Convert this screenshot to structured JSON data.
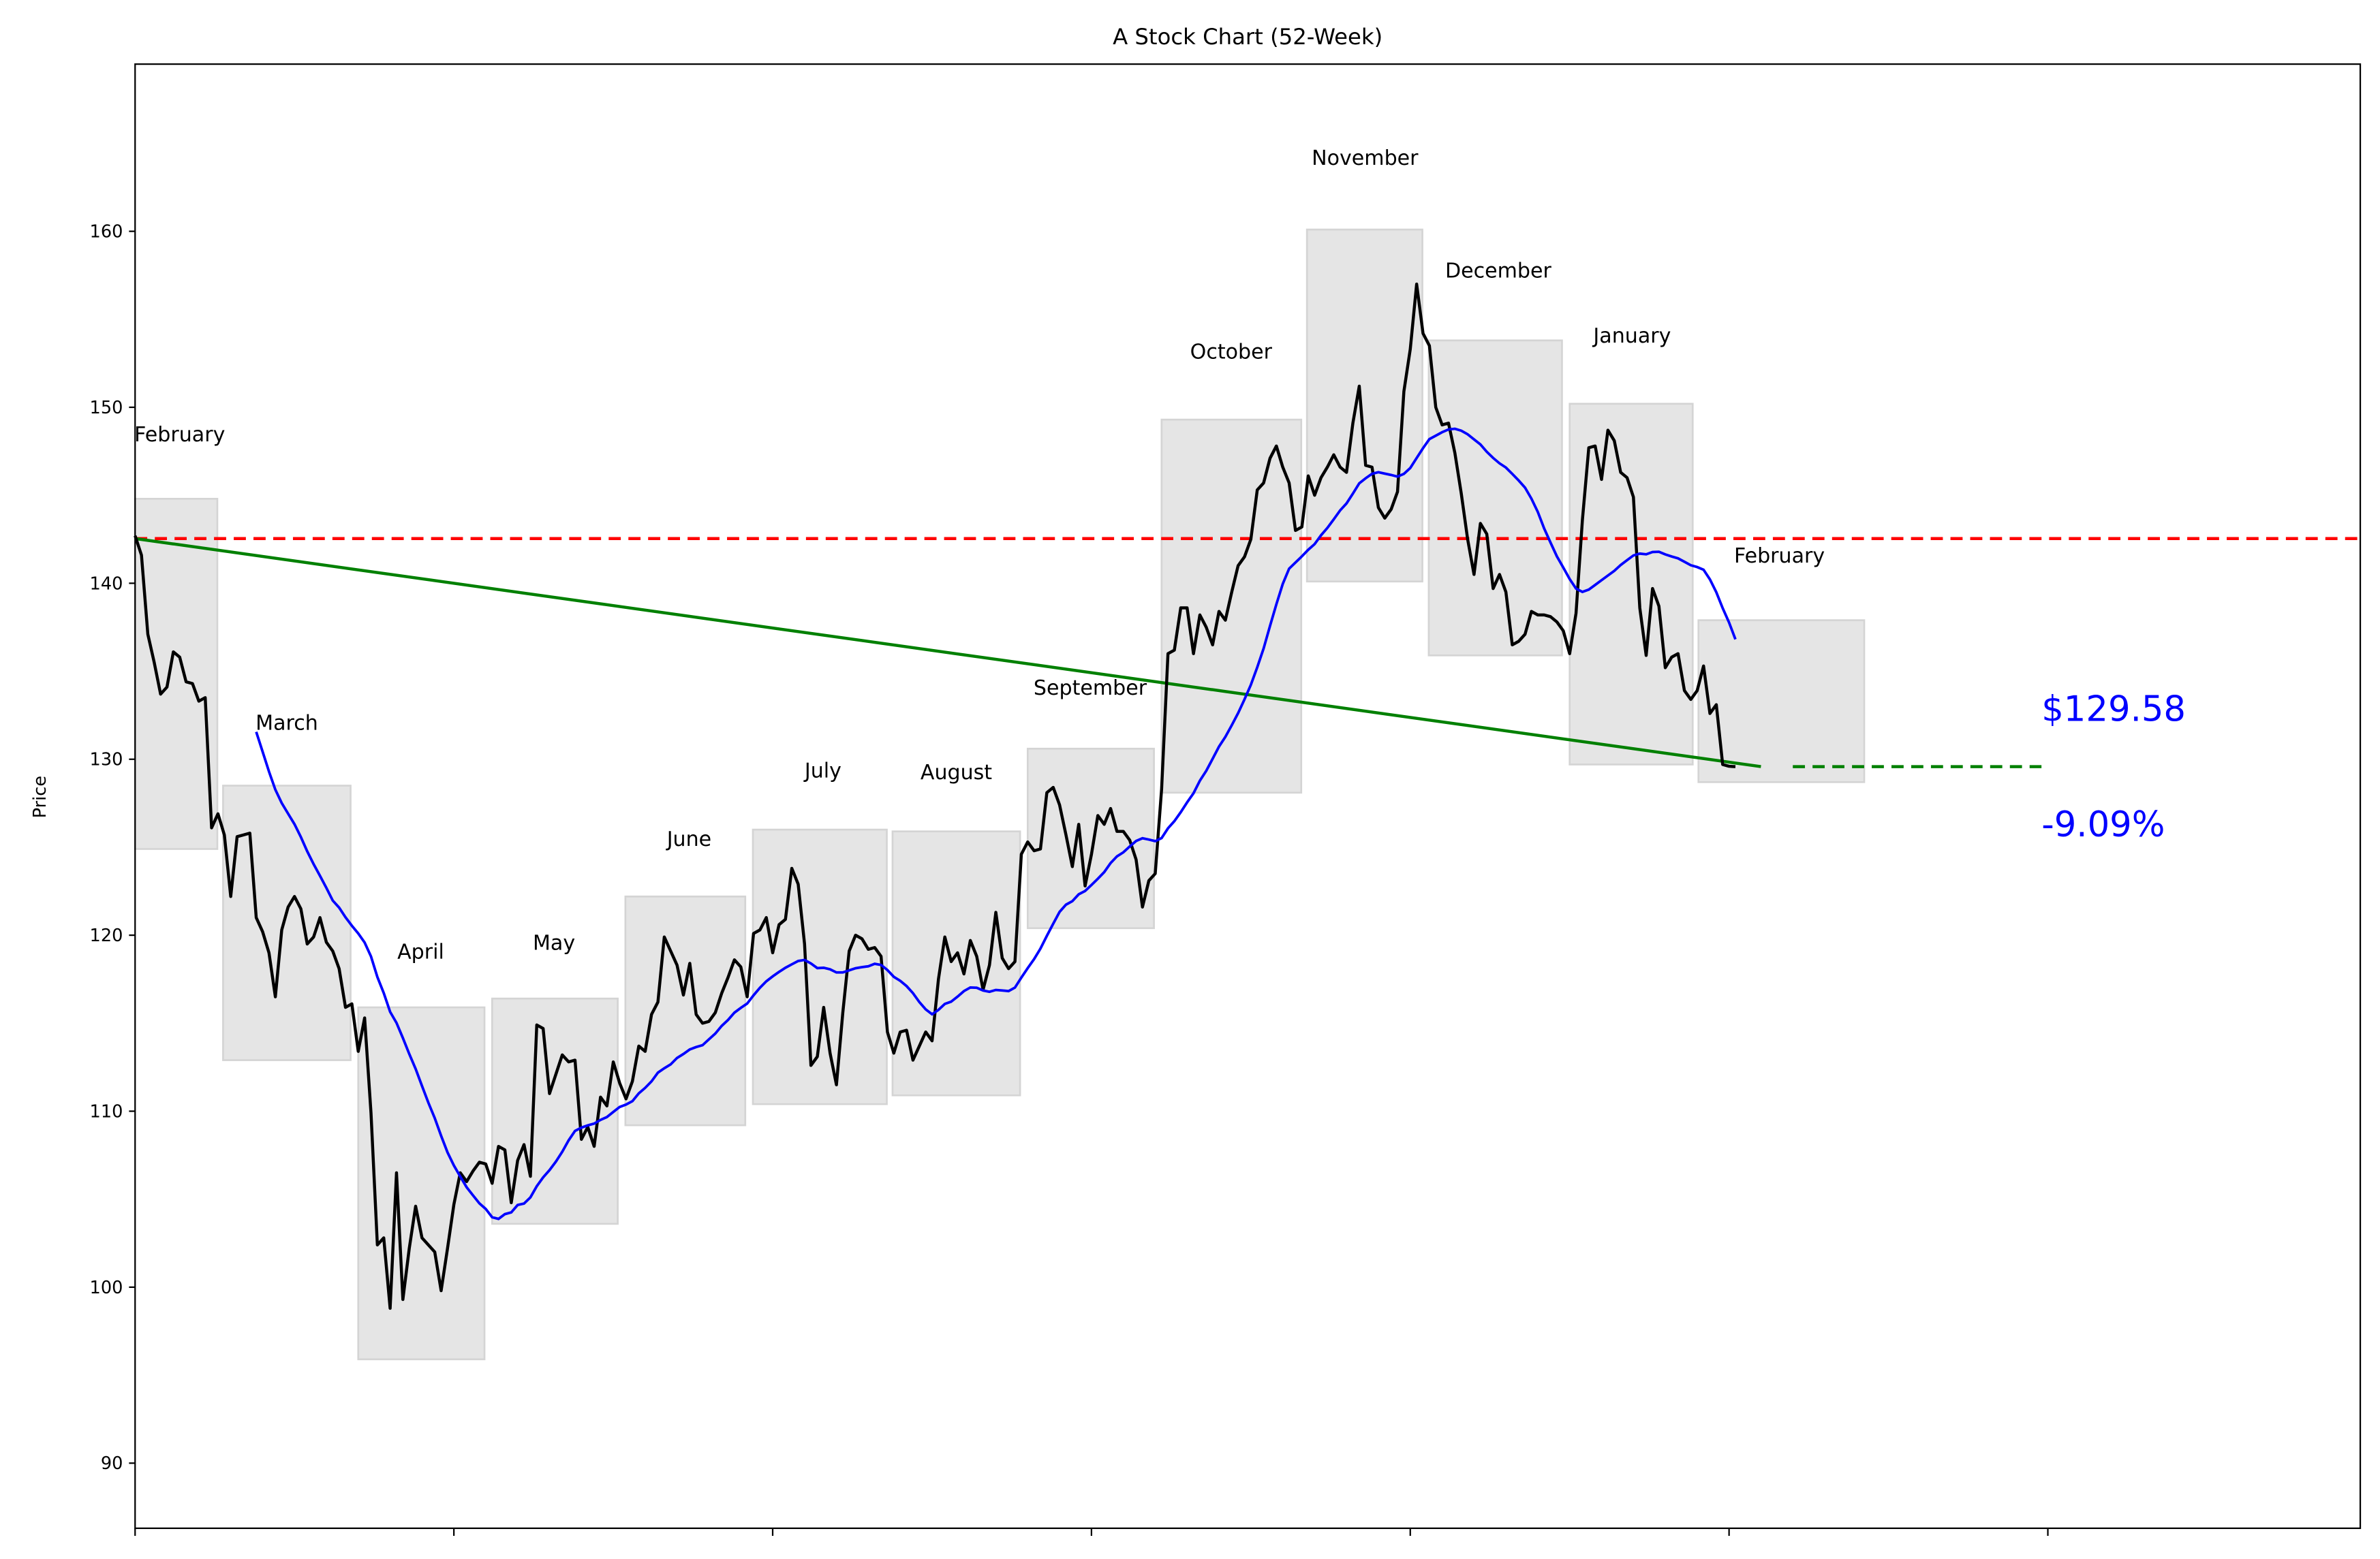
{
  "chart_data": {
    "type": "line",
    "title": "A Stock Chart (52-Week)",
    "xlabel": "",
    "ylabel": "Price",
    "xlim": [
      0,
      349
    ],
    "ylim": [
      86.3,
      169.5
    ],
    "xticks": [
      0,
      50,
      100,
      150,
      200,
      250,
      300
    ],
    "xtick_labels": [
      "",
      "",
      "",
      "",
      "",
      "",
      ""
    ],
    "yticks": [
      90,
      100,
      110,
      120,
      130,
      140,
      150,
      160
    ],
    "ytick_labels": [
      "90",
      "100",
      "110",
      "120",
      "130",
      "140",
      "150",
      "160"
    ],
    "grid": false,
    "colors": {
      "price": "#000000",
      "moving_average": "#0000ff",
      "reference_line": "#ff0000",
      "trend_line": "#008000",
      "month_box_fill": "#e5e5e5",
      "month_box_edge": "#d4d4d4",
      "annotation": "#0000ff"
    },
    "price": [
      142.7,
      141.6,
      137.1,
      135.5,
      133.7,
      134.1,
      136.1,
      135.8,
      134.4,
      134.3,
      133.3,
      133.5,
      126.1,
      126.9,
      125.7,
      122.2,
      125.6,
      125.7,
      125.8,
      121.0,
      120.2,
      119.0,
      116.5,
      120.3,
      121.6,
      122.2,
      121.5,
      119.5,
      119.9,
      121.0,
      119.6,
      119.1,
      118.1,
      115.9,
      116.1,
      113.4,
      115.3,
      109.9,
      102.4,
      102.8,
      98.8,
      106.5,
      99.3,
      102.2,
      104.6,
      102.8,
      102.4,
      102.0,
      99.8,
      102.2,
      104.7,
      106.5,
      106.0,
      106.6,
      107.1,
      107.0,
      105.9,
      108.0,
      107.8,
      104.8,
      107.2,
      108.1,
      106.3,
      114.9,
      114.7,
      111.0,
      112.1,
      113.2,
      112.8,
      112.9,
      108.4,
      109.1,
      108.0,
      110.8,
      110.3,
      112.8,
      111.6,
      110.7,
      111.7,
      113.7,
      113.4,
      115.5,
      116.2,
      119.9,
      119.1,
      118.3,
      116.6,
      118.4,
      115.5,
      115.0,
      115.1,
      115.6,
      116.7,
      117.6,
      118.6,
      118.2,
      116.5,
      120.1,
      120.3,
      121.0,
      119.0,
      120.6,
      120.9,
      123.8,
      122.9,
      119.5,
      112.6,
      113.1,
      115.9,
      113.3,
      111.5,
      115.6,
      119.1,
      120.0,
      119.8,
      119.2,
      119.3,
      118.8,
      114.5,
      113.3,
      114.5,
      114.6,
      112.9,
      113.7,
      114.5,
      114.0,
      117.5,
      119.9,
      118.5,
      119.0,
      117.8,
      119.7,
      118.8,
      116.9,
      118.3,
      121.3,
      118.7,
      118.1,
      118.5,
      124.6,
      125.3,
      124.8,
      124.9,
      128.1,
      128.4,
      127.4,
      125.7,
      123.9,
      126.3,
      122.8,
      124.6,
      126.8,
      126.3,
      127.2,
      125.9,
      125.9,
      125.4,
      124.3,
      121.6,
      123.1,
      123.5,
      128.3,
      136.0,
      136.2,
      138.6,
      138.6,
      136.0,
      138.2,
      137.5,
      136.5,
      138.4,
      137.9,
      139.5,
      141.0,
      141.5,
      142.5,
      145.3,
      145.7,
      147.1,
      147.8,
      146.6,
      145.7,
      143.0,
      143.2,
      146.1,
      145.0,
      146.0,
      146.6,
      147.3,
      146.6,
      146.3,
      149.1,
      151.2,
      146.7,
      146.6,
      144.3,
      143.7,
      144.2,
      145.2,
      150.9,
      153.3,
      157.0,
      154.2,
      153.5,
      150.0,
      149.0,
      149.1,
      147.4,
      145.1,
      142.5,
      140.5,
      143.4,
      142.8,
      139.7,
      140.5,
      139.5,
      136.5,
      136.7,
      137.1,
      138.4,
      138.2,
      138.2,
      138.1,
      137.8,
      137.3,
      136.0,
      138.3,
      143.6,
      147.7,
      147.8,
      145.9,
      148.7,
      148.1,
      146.3,
      146.0,
      144.9,
      138.6,
      135.9,
      139.7,
      138.7,
      135.2,
      135.8,
      136.0,
      133.9,
      133.4,
      133.9,
      135.3,
      132.6,
      133.1,
      129.7,
      129.6,
      129.58
    ],
    "reference_line": {
      "value": 142.54,
      "style": "dashed"
    },
    "trend_line": {
      "from": [
        0,
        142.54
      ],
      "to": [
        255,
        129.58
      ]
    },
    "trend_extension": {
      "from": [
        260,
        129.58
      ],
      "to": [
        299,
        129.58
      ],
      "style": "dashed"
    },
    "month_boxes": [
      {
        "label": "February",
        "x0": 0,
        "x1": 12.9,
        "low": 124.9,
        "high": 144.8,
        "label_x": 7,
        "label_y": 148.5
      },
      {
        "label": "March",
        "x0": 13.8,
        "x1": 33.8,
        "low": 112.9,
        "high": 128.5,
        "label_x": 23.8,
        "label_y": 132.1
      },
      {
        "label": "April",
        "x0": 35,
        "x1": 54.8,
        "low": 95.9,
        "high": 115.9,
        "label_x": 44.8,
        "label_y": 119.1
      },
      {
        "label": "May",
        "x0": 56,
        "x1": 75.7,
        "low": 103.6,
        "high": 116.4,
        "label_x": 65.7,
        "label_y": 119.6
      },
      {
        "label": "June",
        "x0": 76.9,
        "x1": 95.7,
        "low": 109.2,
        "high": 122.2,
        "label_x": 86.9,
        "label_y": 125.5
      },
      {
        "label": "July",
        "x0": 96.9,
        "x1": 117.9,
        "low": 110.4,
        "high": 126.0,
        "label_x": 107.9,
        "label_y": 129.4
      },
      {
        "label": "August",
        "x0": 118.8,
        "x1": 138.8,
        "low": 110.9,
        "high": 125.9,
        "label_x": 128.8,
        "label_y": 129.3
      },
      {
        "label": "September",
        "x0": 140,
        "x1": 159.8,
        "low": 120.4,
        "high": 130.6,
        "label_x": 149.8,
        "label_y": 134.1
      },
      {
        "label": "October",
        "x0": 161,
        "x1": 182.9,
        "low": 128.1,
        "high": 149.3,
        "label_x": 171.9,
        "label_y": 153.2
      },
      {
        "label": "November",
        "x0": 183.8,
        "x1": 201.9,
        "low": 140.1,
        "high": 160.1,
        "label_x": 192.9,
        "label_y": 164.2
      },
      {
        "label": "December",
        "x0": 202.9,
        "x1": 223.8,
        "low": 135.9,
        "high": 153.8,
        "label_x": 213.8,
        "label_y": 157.8
      },
      {
        "label": "January",
        "x0": 225,
        "x1": 244.3,
        "low": 129.7,
        "high": 150.2,
        "label_x": 234.8,
        "label_y": 154.1
      },
      {
        "label": "February",
        "x0": 245.2,
        "x1": 271.2,
        "low": 128.7,
        "high": 137.9,
        "label_x": 257.9,
        "label_y": 141.6
      }
    ],
    "annotations": {
      "last_price": "$129.58",
      "change": "-9.09%"
    }
  }
}
